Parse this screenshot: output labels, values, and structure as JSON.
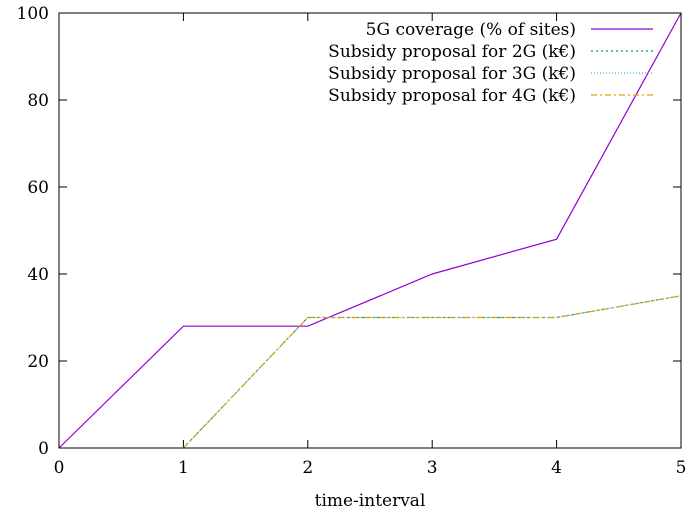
{
  "chart_data": {
    "type": "line",
    "title": "",
    "xlabel": "time-interval",
    "ylabel": "",
    "x": [
      0,
      1,
      2,
      3,
      4,
      5
    ],
    "xlim": [
      0,
      5
    ],
    "ylim": [
      0,
      100
    ],
    "xticks": [
      "0",
      "1",
      "2",
      "3",
      "4",
      "5"
    ],
    "yticks": [
      "0",
      "20",
      "40",
      "60",
      "80",
      "100"
    ],
    "grid": false,
    "legend_position": "top-right",
    "series": [
      {
        "name": "5G coverage (% of sites)",
        "values": [
          0,
          28,
          28,
          40,
          48,
          100
        ],
        "color": "#9400d3",
        "dash": ""
      },
      {
        "name": "Subsidy proposal for 2G (k€)",
        "values": [
          null,
          0,
          30,
          30,
          30,
          35
        ],
        "color": "#009e73",
        "dash": "2,3"
      },
      {
        "name": "Subsidy proposal for 3G (k€)",
        "values": [
          null,
          0,
          30,
          30,
          30,
          35
        ],
        "color": "#56b4e9",
        "dash": "1,2"
      },
      {
        "name": "Subsidy proposal for 4G (k€)",
        "values": [
          null,
          0,
          30,
          30,
          30,
          35
        ],
        "color": "#e69f00",
        "dash": "6,3,2,3"
      }
    ]
  }
}
